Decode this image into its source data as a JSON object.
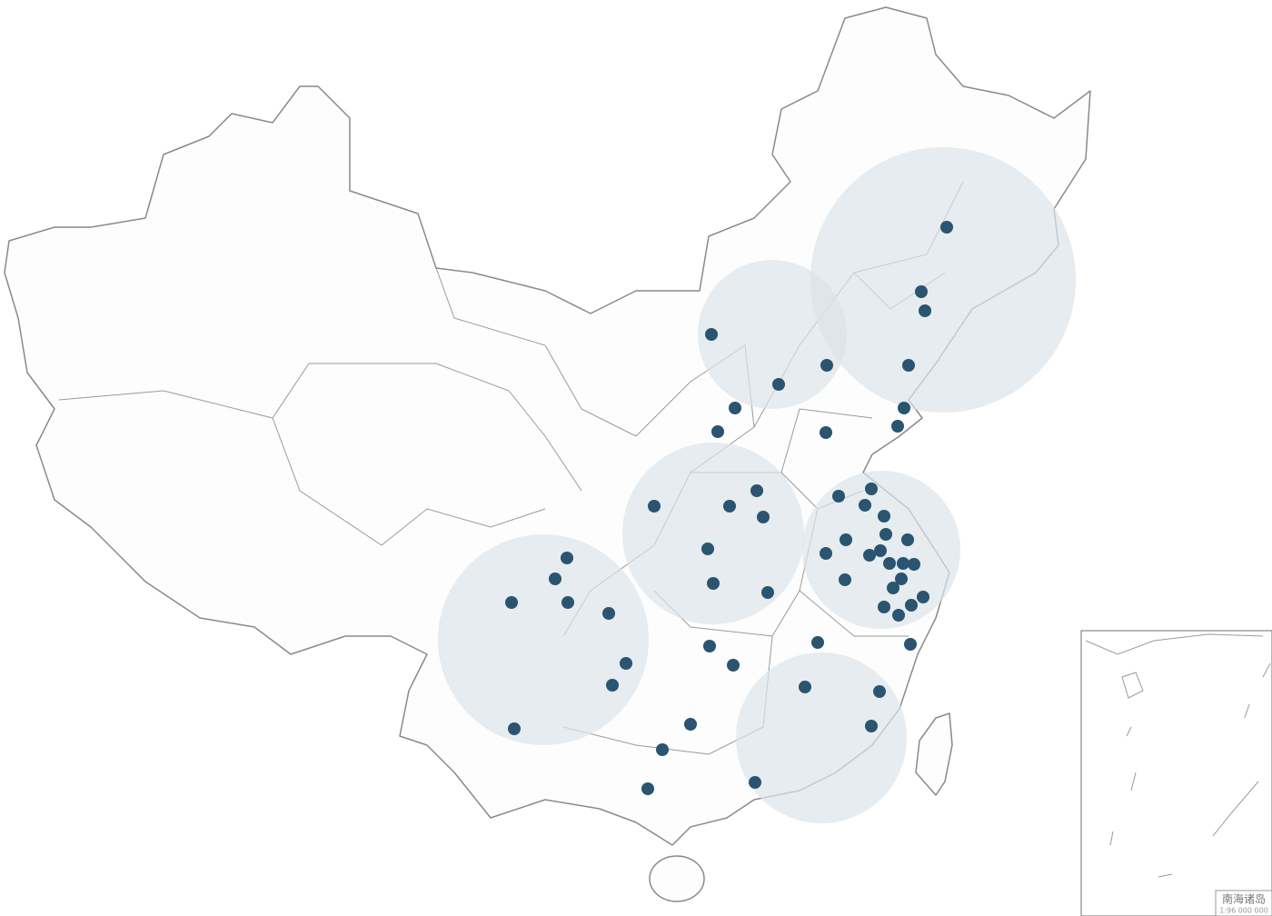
{
  "inset": {
    "title": "南海诸岛",
    "scale": "1:96 000 000"
  }
}
